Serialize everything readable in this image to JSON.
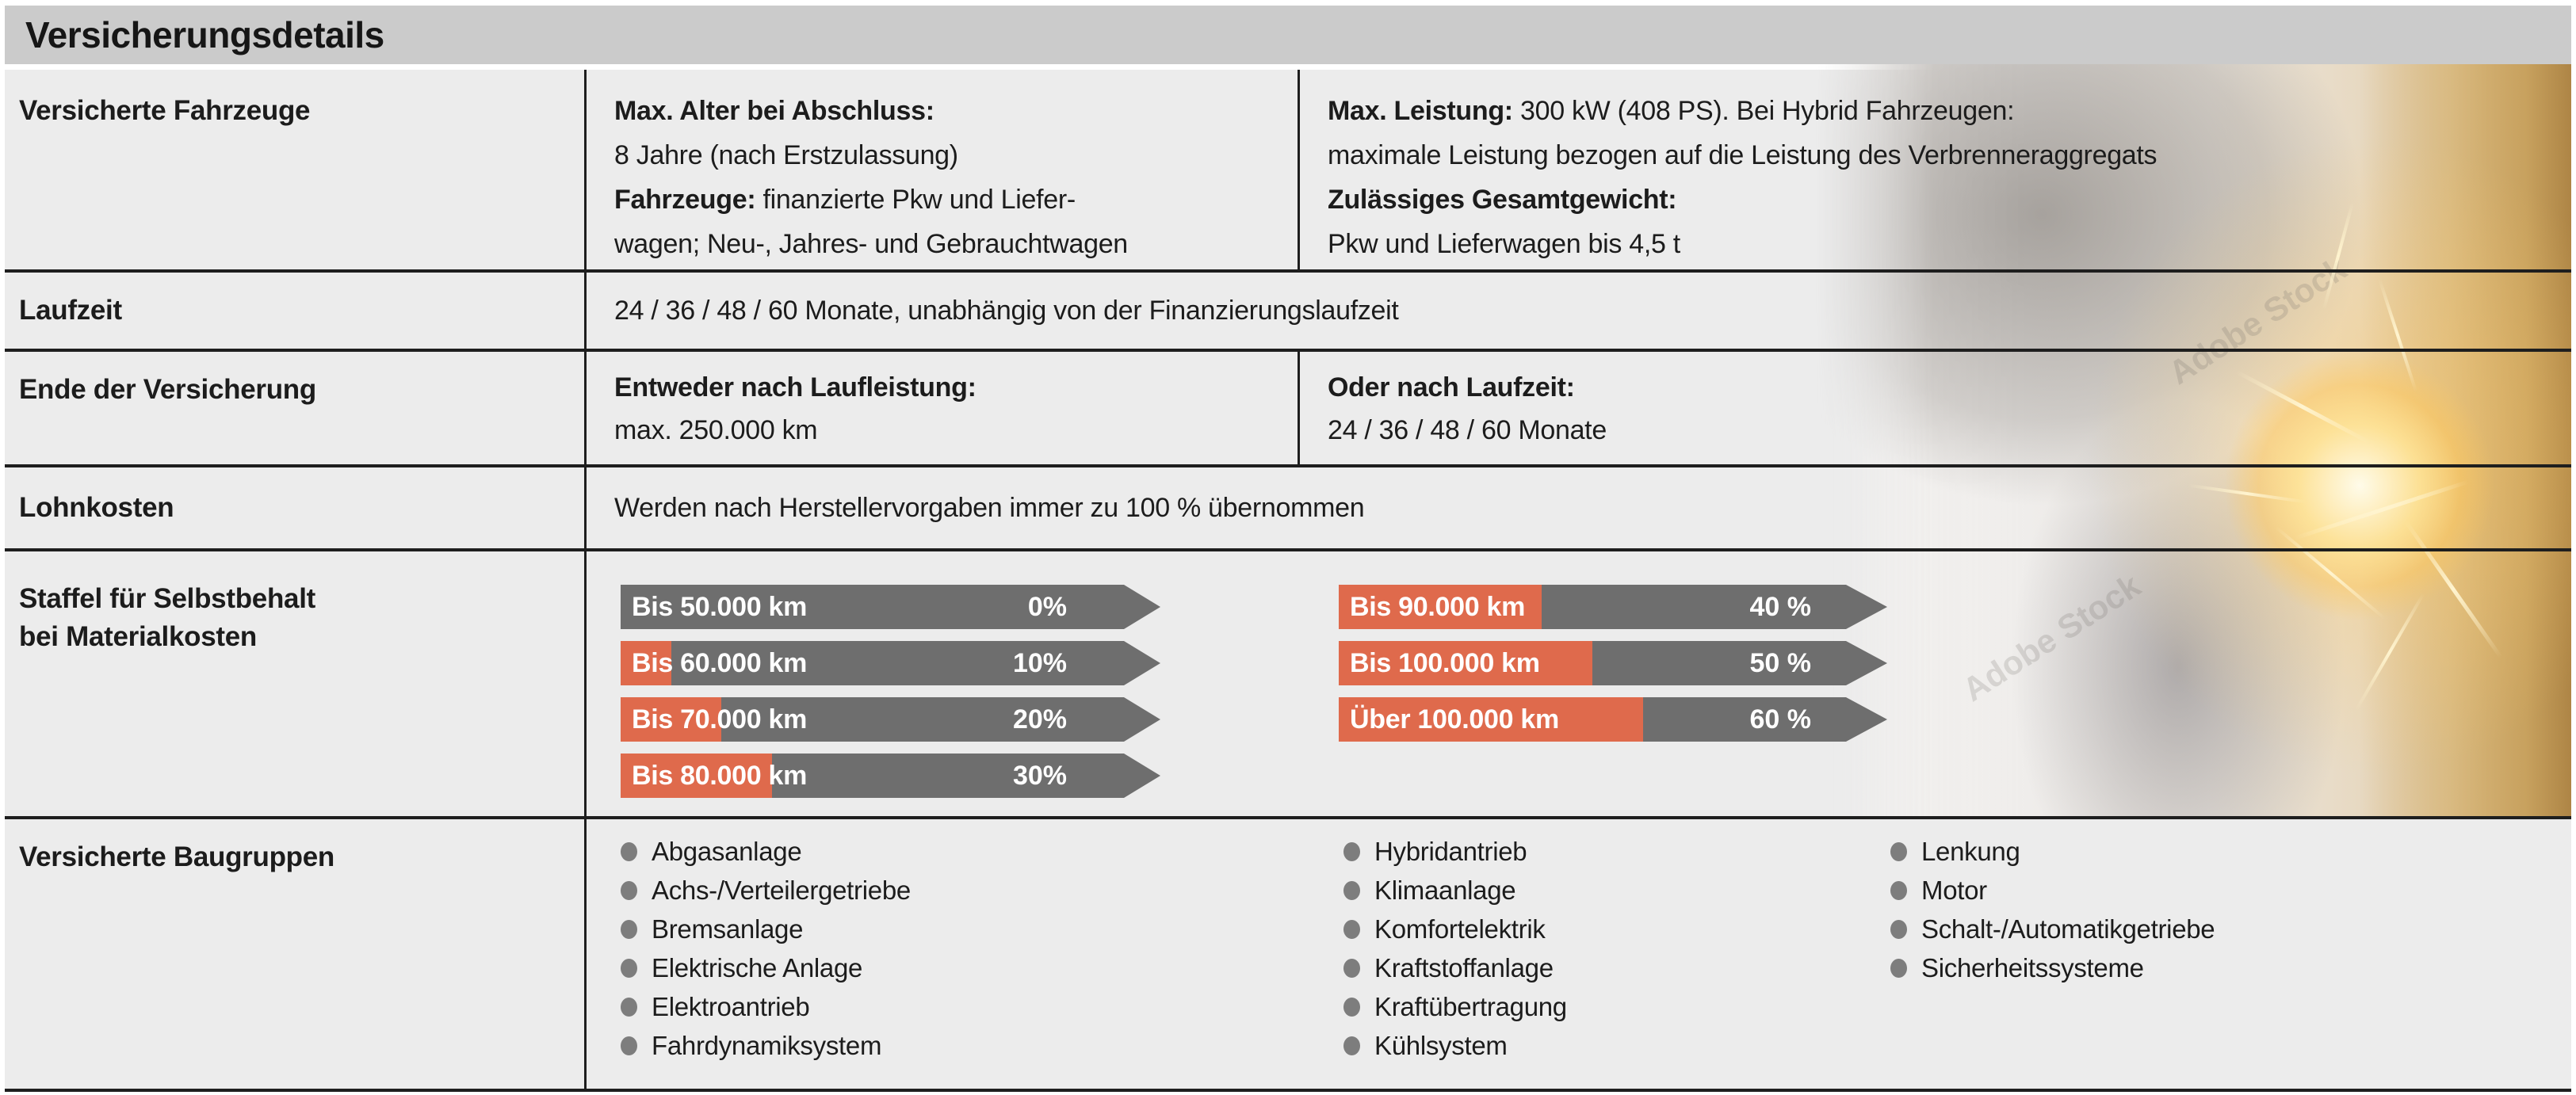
{
  "header": {
    "title": "Versicherungsdetails"
  },
  "colors": {
    "header_gray": "#cbcbcb",
    "row_background": "#ececec",
    "line": "#1e1e1e",
    "arrow_gray": "#6e6e6e",
    "accent_orange": "#df6a4c",
    "bullet_gray": "#7d7d7d"
  },
  "fahrzeuge": {
    "label": "Versicherte Fahrzeuge",
    "col2": {
      "l1": "Max. Alter bei Abschluss:",
      "l2": "8 Jahre (nach Erstzulassung)",
      "l3b": "Fahrzeuge:",
      "l3r": " finanzierte Pkw und Liefer-",
      "l4": "wagen; Neu-, Jahres- und Gebrauchtwagen"
    },
    "col3": {
      "l1b": "Max. Leistung:",
      "l1r": " 300 kW (408 PS). Bei Hybrid Fahrzeugen:",
      "l2": "maximale Leistung bezogen auf die Leistung des Verbrenneraggregats",
      "l3": "Zulässiges Gesamtgewicht:",
      "l4": "Pkw und Lieferwagen bis 4,5 t"
    }
  },
  "laufzeit": {
    "label": "Laufzeit",
    "text": "24 / 36 / 48 / 60 Monate, unabhängig von der Finanzierungslaufzeit"
  },
  "ende": {
    "label": "Ende der Versicherung",
    "col2_title": "Entweder nach Laufleistung:",
    "col2_text": "max. 250.000 km",
    "col3_title": "Oder nach Laufzeit:",
    "col3_text": "24 / 36 / 48 / 60 Monate"
  },
  "lohnkosten": {
    "label": "Lohnkosten",
    "text": "Werden nach Herstellervorgaben immer zu 100 % übernommen"
  },
  "staffel": {
    "label_line1": "Staffel für Selbstbehalt",
    "label_line2": "bei Materialkosten",
    "left": [
      {
        "range": "Bis 50.000 km",
        "pct_label": "0%",
        "pct": 0
      },
      {
        "range": "Bis 60.000 km",
        "pct_label": "10%",
        "pct": 10
      },
      {
        "range": "Bis 70.000 km",
        "pct_label": "20%",
        "pct": 20
      },
      {
        "range": "Bis 80.000 km",
        "pct_label": "30%",
        "pct": 30
      }
    ],
    "right": [
      {
        "range": "Bis 90.000 km",
        "pct_label": "40 %",
        "pct": 40
      },
      {
        "range": "Bis 100.000 km",
        "pct_label": "50 %",
        "pct": 50
      },
      {
        "range": "Über 100.000 km",
        "pct_label": "60 %",
        "pct": 60
      }
    ]
  },
  "baugruppen": {
    "label": "Versicherte Baugruppen",
    "columns": [
      [
        "Abgasanlage",
        "Achs-/Verteilergetriebe",
        "Bremsanlage",
        "Elektrische Anlage",
        "Elektroantrieb",
        "Fahrdynamiksystem"
      ],
      [
        "Hybridantrieb",
        "Klimaanlage",
        "Komfortelektrik",
        "Kraftstoffanlage",
        "Kraftübertragung",
        "Kühlsystem"
      ],
      [
        "Lenkung",
        "Motor",
        "Schalt-/Automatikgetriebe",
        "Sicherheitssysteme"
      ]
    ]
  },
  "photo": {
    "watermark": "Adobe Stock"
  }
}
